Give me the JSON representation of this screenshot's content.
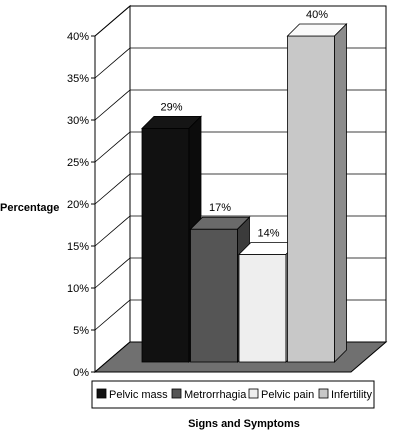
{
  "chart_data": {
    "type": "bar",
    "categories": [
      "Pelvic mass",
      "Metrorrhagia",
      "Pelvic pain",
      "Infertility"
    ],
    "values": [
      29,
      17,
      14,
      40
    ],
    "data_labels": [
      "29%",
      "17%",
      "14%",
      "40%"
    ],
    "colors": [
      "#111111",
      "#555555",
      "#eeeeee",
      "#c8c8c8"
    ],
    "title": "",
    "xlabel": "Signs and Symptoms",
    "ylabel": "Percentage",
    "ylim": [
      0,
      40
    ],
    "yticks": [
      "0%",
      "5%",
      "10%",
      "15%",
      "20%",
      "25%",
      "30%",
      "35%",
      "40%"
    ],
    "grid": true,
    "legend": "bottom",
    "three_d": true
  }
}
